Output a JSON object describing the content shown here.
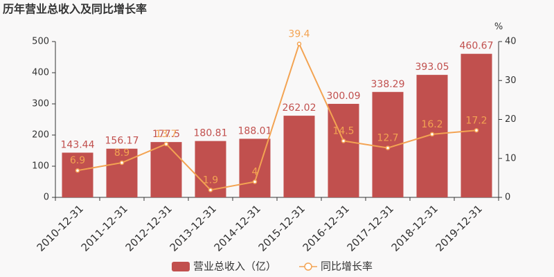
{
  "chart_data": {
    "type": "bar",
    "title": "历年营业总收入及同比增长率",
    "y2_label": "%",
    "categories": [
      "2010-12-31",
      "2011-12-31",
      "2012-12-31",
      "2013-12-31",
      "2014-12-31",
      "2015-12-31",
      "2016-12-31",
      "2017-12-31",
      "2018-12-31",
      "2019-12-31"
    ],
    "series": [
      {
        "name": "营业总收入（亿）",
        "type": "bar",
        "axis": "y",
        "color": "#c1504e",
        "values": [
          143.44,
          156.17,
          177.5,
          180.81,
          188.01,
          262.02,
          300.09,
          338.29,
          393.05,
          460.67
        ]
      },
      {
        "name": "同比增长率",
        "type": "line",
        "axis": "y2",
        "color": "#f3a352",
        "values": [
          6.9,
          8.9,
          13.7,
          1.9,
          4,
          39.4,
          14.5,
          12.7,
          16.2,
          17.2
        ]
      }
    ],
    "ylim": [
      0,
      500
    ],
    "yticks": [
      0,
      100,
      200,
      300,
      400,
      500
    ],
    "y2lim": [
      0,
      40
    ],
    "y2ticks": [
      0,
      10,
      20,
      30,
      40
    ],
    "grid": false
  }
}
